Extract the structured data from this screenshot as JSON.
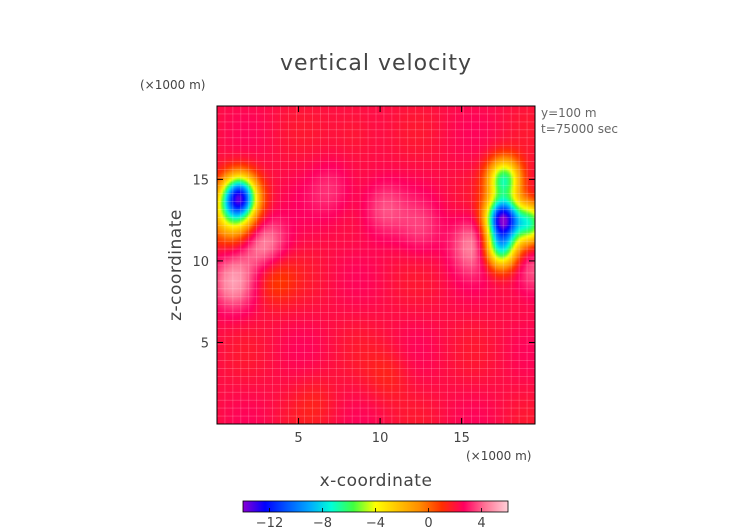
{
  "chart_data": {
    "type": "heatmap",
    "title": "vertical velocity",
    "xlabel": "x-coordinate",
    "ylabel": "z-coordinate",
    "x_unit": "(×1000 m)",
    "y_unit": "(×1000 m)",
    "annotations": [
      "y=100 m",
      "t=75000 sec"
    ],
    "xlim": [
      0,
      19.5
    ],
    "ylim": [
      0,
      19.5
    ],
    "xticks": [
      5,
      10,
      15
    ],
    "yticks": [
      5,
      10,
      15
    ],
    "grid": true,
    "grid_color": "#ffffff",
    "background_value": 2.2,
    "features": [
      {
        "x": 1.4,
        "z": 14.0,
        "value": -8.5
      },
      {
        "x": 1.0,
        "z": 13.0,
        "value": -4.5
      },
      {
        "x": 17.5,
        "z": 12.6,
        "value": -12.5
      },
      {
        "x": 17.6,
        "z": 15.0,
        "value": -6.5
      },
      {
        "x": 17.4,
        "z": 10.8,
        "value": -7.0
      },
      {
        "x": 19.2,
        "z": 12.3,
        "value": -6.5
      },
      {
        "x": 2.9,
        "z": 11.0,
        "value": 5.0
      },
      {
        "x": 1.0,
        "z": 8.7,
        "value": 4.8
      },
      {
        "x": 15.8,
        "z": 11.0,
        "value": 4.8
      },
      {
        "x": 10.2,
        "z": 13.2,
        "value": 3.8
      },
      {
        "x": 7.0,
        "z": 14.3,
        "value": 3.3
      },
      {
        "x": 12.5,
        "z": 12.0,
        "value": 3.3
      },
      {
        "x": 3.4,
        "z": 9.1,
        "value": 0.5
      },
      {
        "x": 19.5,
        "z": 9.5,
        "value": 4.2
      },
      {
        "x": 10.5,
        "z": 3.0,
        "value": 1.5
      },
      {
        "x": 8.5,
        "z": 17.8,
        "value": 1.6
      },
      {
        "x": 6.0,
        "z": 1.5,
        "value": 1.7
      }
    ],
    "colorbar": {
      "range": [
        -14,
        6
      ],
      "ticks": [
        -12,
        -8,
        -4,
        0,
        4
      ],
      "tick_labels": [
        "−12",
        "−8",
        "−4",
        "0",
        "4"
      ],
      "colors": [
        "#8a00d4",
        "#0000ff",
        "#0058ff",
        "#00a8ff",
        "#00ffd8",
        "#40ff40",
        "#ffff00",
        "#ffc400",
        "#ff8c00",
        "#ff3000",
        "#ff0060",
        "#ff7898",
        "#ffd0d8"
      ]
    }
  }
}
